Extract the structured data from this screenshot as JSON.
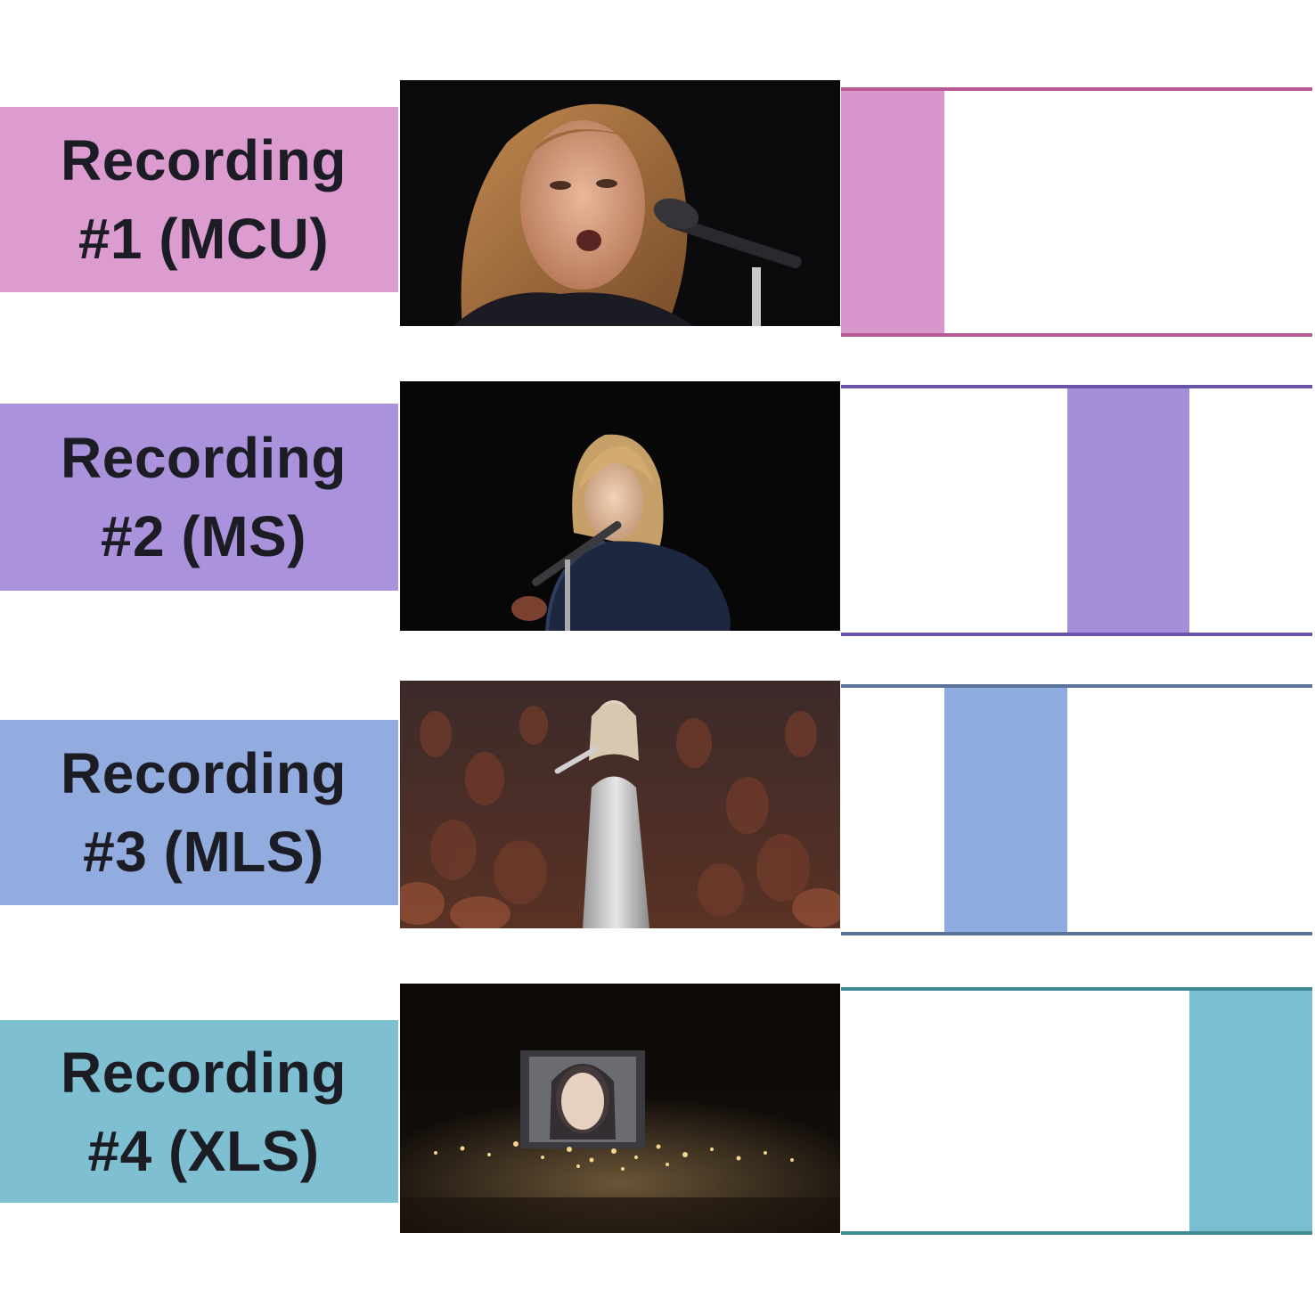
{
  "recordings": [
    {
      "line1": "Recording",
      "line2": "#1 (MCU)",
      "label_color": "#dc9cd0",
      "accent_color": "#d897cc",
      "border_color": "#b75a93",
      "segment": {
        "start": 0.0,
        "end": 0.22
      },
      "thumbnail_icon": "close-up-singer-image"
    },
    {
      "line1": "Recording",
      "line2": "#2 (MS)",
      "label_color": "#ab92dc",
      "accent_color": "#a48fda",
      "border_color": "#6a55a8",
      "segment": {
        "start": 0.48,
        "end": 0.74
      },
      "thumbnail_icon": "medium-shot-singer-image"
    },
    {
      "line1": "Recording",
      "line2": "#3 (MLS)",
      "label_color": "#93acdf",
      "accent_color": "#8eacdf",
      "border_color": "#5a7398",
      "segment": {
        "start": 0.22,
        "end": 0.48
      },
      "thumbnail_icon": "medium-long-shot-stage-image"
    },
    {
      "line1": "Recording",
      "line2": "#4 (XLS)",
      "label_color": "#7ec0d2",
      "accent_color": "#7abfd1",
      "border_color": "#3f8a92",
      "segment": {
        "start": 0.74,
        "end": 1.0
      },
      "thumbnail_icon": "extra-long-shot-arena-image"
    }
  ]
}
